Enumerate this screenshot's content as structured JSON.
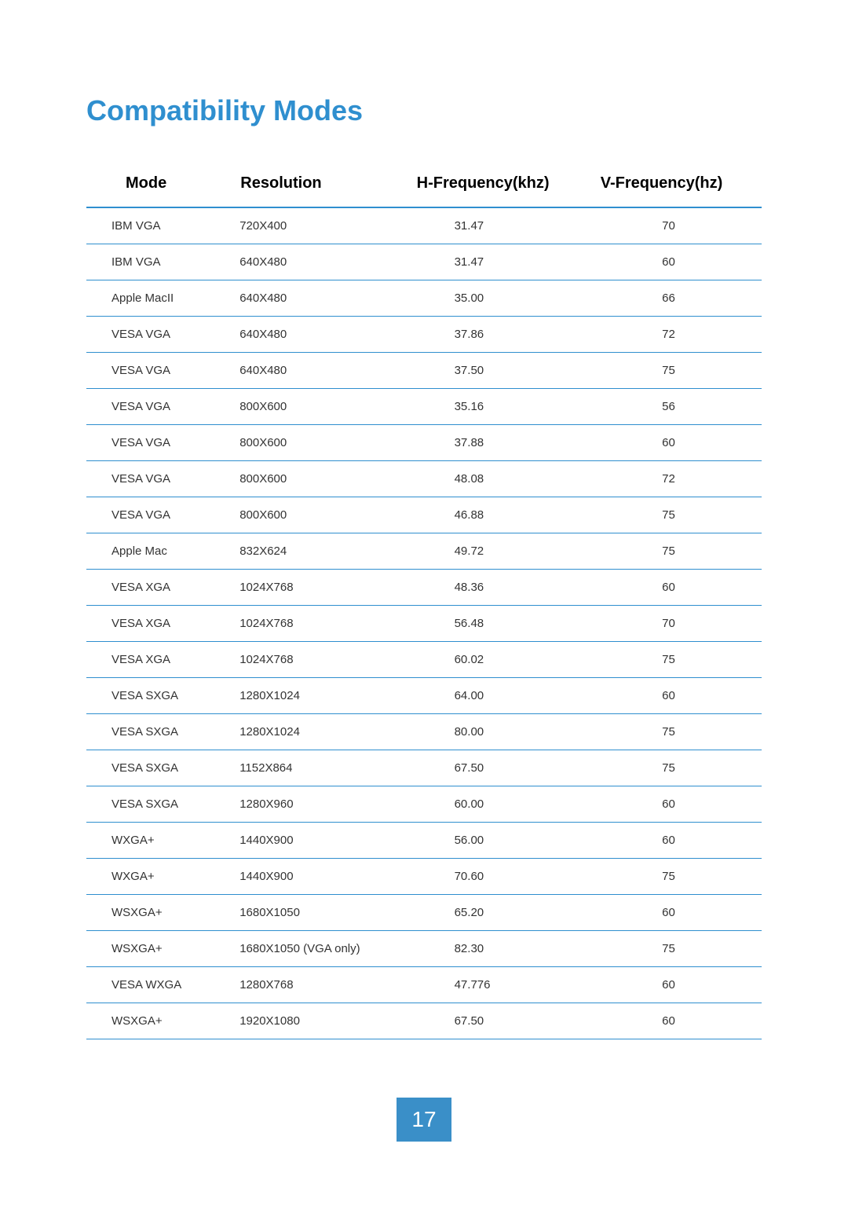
{
  "title": "Compatibility Modes",
  "title_color": "#2f8fcf",
  "page_number": "17",
  "pagebox_bg": "#3a8fc8",
  "colors": {
    "row_border": "#2f8fcf",
    "header_border": "#2f8fcf",
    "cell_text": "#333333"
  },
  "table": {
    "type": "table",
    "columns": [
      "Mode",
      "Resolution",
      "H-Frequency(khz)",
      "V-Frequency(hz)"
    ],
    "rows": [
      [
        "IBM VGA",
        "720X400",
        "31.47",
        "70"
      ],
      [
        "IBM VGA",
        "640X480",
        "31.47",
        "60"
      ],
      [
        "Apple MacII",
        "640X480",
        "35.00",
        "66"
      ],
      [
        "VESA VGA",
        "640X480",
        "37.86",
        "72"
      ],
      [
        "VESA VGA",
        "640X480",
        "37.50",
        "75"
      ],
      [
        "VESA VGA",
        "800X600",
        "35.16",
        "56"
      ],
      [
        "VESA VGA",
        "800X600",
        "37.88",
        "60"
      ],
      [
        "VESA VGA",
        "800X600",
        "48.08",
        "72"
      ],
      [
        "VESA VGA",
        "800X600",
        "46.88",
        "75"
      ],
      [
        "Apple Mac",
        "832X624",
        "49.72",
        "75"
      ],
      [
        "VESA XGA",
        "1024X768",
        "48.36",
        "60"
      ],
      [
        "VESA XGA",
        "1024X768",
        "56.48",
        "70"
      ],
      [
        "VESA XGA",
        "1024X768",
        "60.02",
        "75"
      ],
      [
        "VESA SXGA",
        "1280X1024",
        "64.00",
        "60"
      ],
      [
        "VESA SXGA",
        "1280X1024",
        "80.00",
        "75"
      ],
      [
        "VESA SXGA",
        "1152X864",
        "67.50",
        "75"
      ],
      [
        "VESA SXGA",
        "1280X960",
        "60.00",
        "60"
      ],
      [
        "WXGA+",
        "1440X900",
        "56.00",
        "60"
      ],
      [
        "WXGA+",
        "1440X900",
        "70.60",
        "75"
      ],
      [
        "WSXGA+",
        "1680X1050",
        "65.20",
        "60"
      ],
      [
        "WSXGA+",
        "1680X1050 (VGA only)",
        "82.30",
        "75"
      ],
      [
        "VESA WXGA",
        "1280X768",
        "47.776",
        "60"
      ],
      [
        "WSXGA+",
        "1920X1080",
        "67.50",
        "60"
      ]
    ]
  }
}
